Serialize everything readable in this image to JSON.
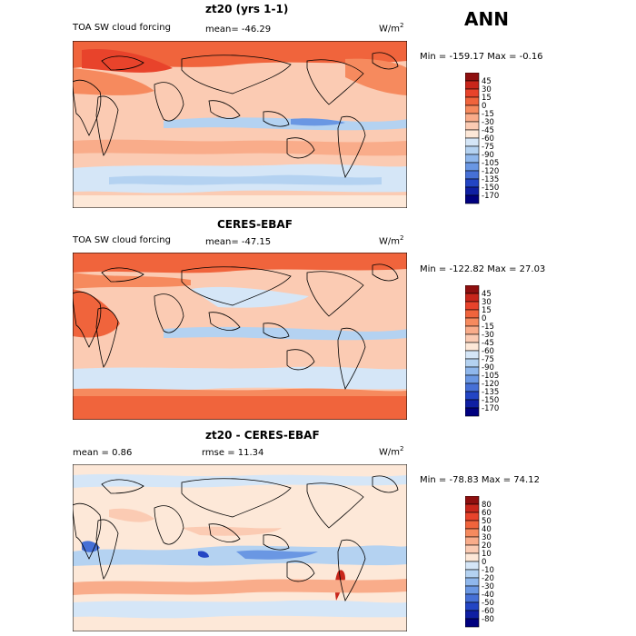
{
  "season": "ANN",
  "panels": [
    {
      "title": "zt20 (yrs 1-1)",
      "left_label": "TOA SW cloud forcing",
      "center_label": "mean=  -46.29",
      "right_label": "",
      "units_base": "W/m",
      "units_exp": "2",
      "minmax": "Min = -159.17 Max =   -0.16",
      "colorbar": {
        "labels": [
          "45",
          "30",
          "15",
          "0",
          "-15",
          "-30",
          "-45",
          "-60",
          "-75",
          "-90",
          "-105",
          "-120",
          "-135",
          "-150",
          "-170"
        ],
        "colors": [
          "#8e0f0f",
          "#c8261b",
          "#e8432b",
          "#f0643c",
          "#f68a5e",
          "#f9ac8a",
          "#fbcbb3",
          "#fde8d8",
          "#d5e6f7",
          "#b4d2f1",
          "#8fb7ec",
          "#6a97e3",
          "#4670d6",
          "#2345c4",
          "#0f1fa3",
          "#00007f"
        ]
      }
    },
    {
      "title": "CERES-EBAF",
      "left_label": "TOA SW cloud forcing",
      "center_label": "mean=  -47.15",
      "right_label": "",
      "units_base": "W/m",
      "units_exp": "2",
      "minmax": "Min = -122.82 Max =  27.03",
      "colorbar": {
        "labels": [
          "45",
          "30",
          "15",
          "0",
          "-15",
          "-30",
          "-45",
          "-60",
          "-75",
          "-90",
          "-105",
          "-120",
          "-135",
          "-150",
          "-170"
        ],
        "colors": [
          "#8e0f0f",
          "#c8261b",
          "#e8432b",
          "#f0643c",
          "#f68a5e",
          "#f9ac8a",
          "#fbcbb3",
          "#fde8d8",
          "#d5e6f7",
          "#b4d2f1",
          "#8fb7ec",
          "#6a97e3",
          "#4670d6",
          "#2345c4",
          "#0f1fa3",
          "#00007f"
        ]
      }
    },
    {
      "title": "zt20 - CERES-EBAF",
      "left_label": "mean =    0.86",
      "center_label": "rmse =   11.34",
      "right_label": "",
      "units_base": "W/m",
      "units_exp": "2",
      "minmax": "Min = -78.83 Max =  74.12",
      "colorbar": {
        "labels": [
          "80",
          "60",
          "50",
          "40",
          "30",
          "20",
          "10",
          "0",
          "-10",
          "-20",
          "-30",
          "-40",
          "-50",
          "-60",
          "-80"
        ],
        "colors": [
          "#8e0f0f",
          "#c8261b",
          "#e8432b",
          "#f0643c",
          "#f68a5e",
          "#f9ac8a",
          "#fbcbb3",
          "#fde8d8",
          "#d5e6f7",
          "#b4d2f1",
          "#8fb7ec",
          "#6a97e3",
          "#4670d6",
          "#2345c4",
          "#0f1fa3",
          "#00007f"
        ]
      }
    }
  ]
}
